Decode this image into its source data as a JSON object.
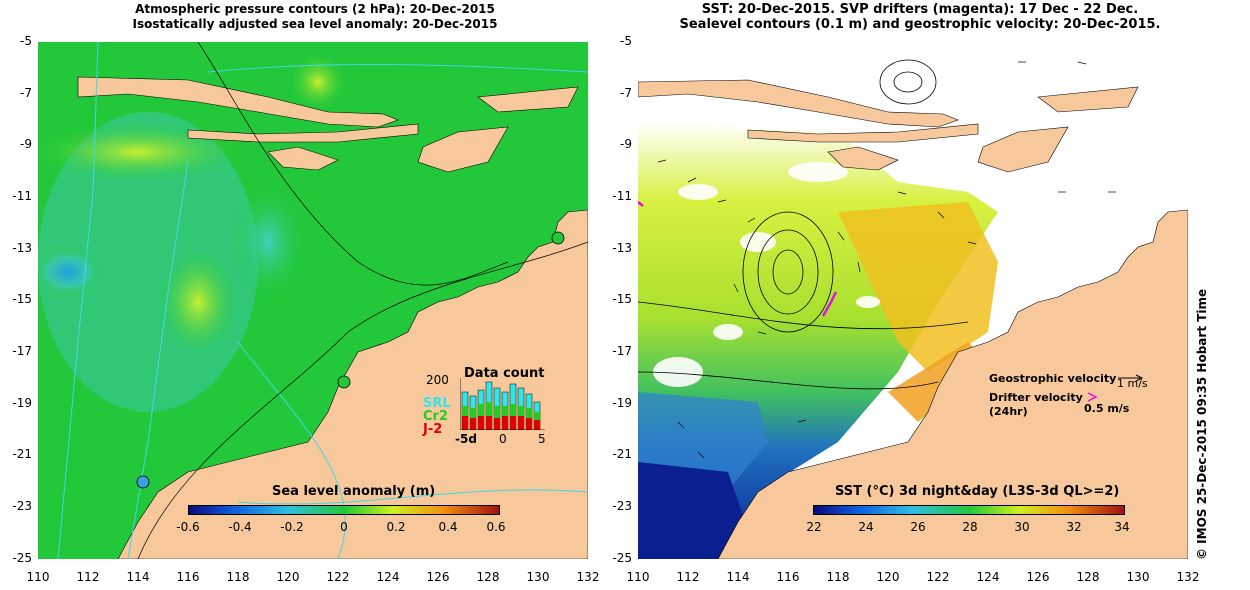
{
  "left_panel": {
    "title_line1": "Atmospheric pressure contours (2 hPa): 20-Dec-2015",
    "title_line2": "Isostatically adjusted sea level anomaly: 20-Dec-2015",
    "colorbar_title": "Sea level anomaly (m)",
    "colorbar_ticks": [
      "-0.6",
      "-0.4",
      "-0.2",
      "0",
      "0.2",
      "0.4",
      "0.6"
    ],
    "inset": {
      "title": "Data count",
      "y_max_label": "200",
      "x_labels": [
        "-5d",
        "0",
        "5"
      ],
      "legend": [
        {
          "label": "SRL",
          "color": "#33e6e6"
        },
        {
          "label": "Cr2",
          "color": "#22cc22"
        },
        {
          "label": "J-2",
          "color": "#e00000"
        }
      ]
    }
  },
  "right_panel": {
    "title_line1": "SST: 20-Dec-2015. SVP drifters (magenta): 17 Dec - 22 Dec.",
    "title_line2": "Sealevel contours (0.1 m) and geostrophic velocity: 20-Dec-2015.",
    "colorbar_title": "SST (°C) 3d night&day (L3S-3d QL>=2)",
    "colorbar_ticks": [
      "22",
      "24",
      "26",
      "28",
      "30",
      "32",
      "34"
    ],
    "geo_velocity_label": "Geostrophic velocity",
    "geo_velocity_scale": "1 m/s",
    "drifter_label_1": "Drifter velocity",
    "drifter_label_2": "(24hr)",
    "drifter_scale": "0.5 m/s"
  },
  "y_axis_labels": [
    "-5",
    "-7",
    "-9",
    "-11",
    "-13",
    "-15",
    "-17",
    "-19",
    "-21",
    "-23",
    "-25"
  ],
  "x_axis_labels": [
    "110",
    "112",
    "114",
    "116",
    "118",
    "120",
    "122",
    "124",
    "126",
    "128",
    "130",
    "132"
  ],
  "side_text": "© IMOS 25-Dec-2015 09:35 Hobart Time",
  "colors": {
    "land": "#f7c89b",
    "sea_green": "#22c83a",
    "sst_blue": "#1030a0",
    "drifter": "#e010e0"
  }
}
